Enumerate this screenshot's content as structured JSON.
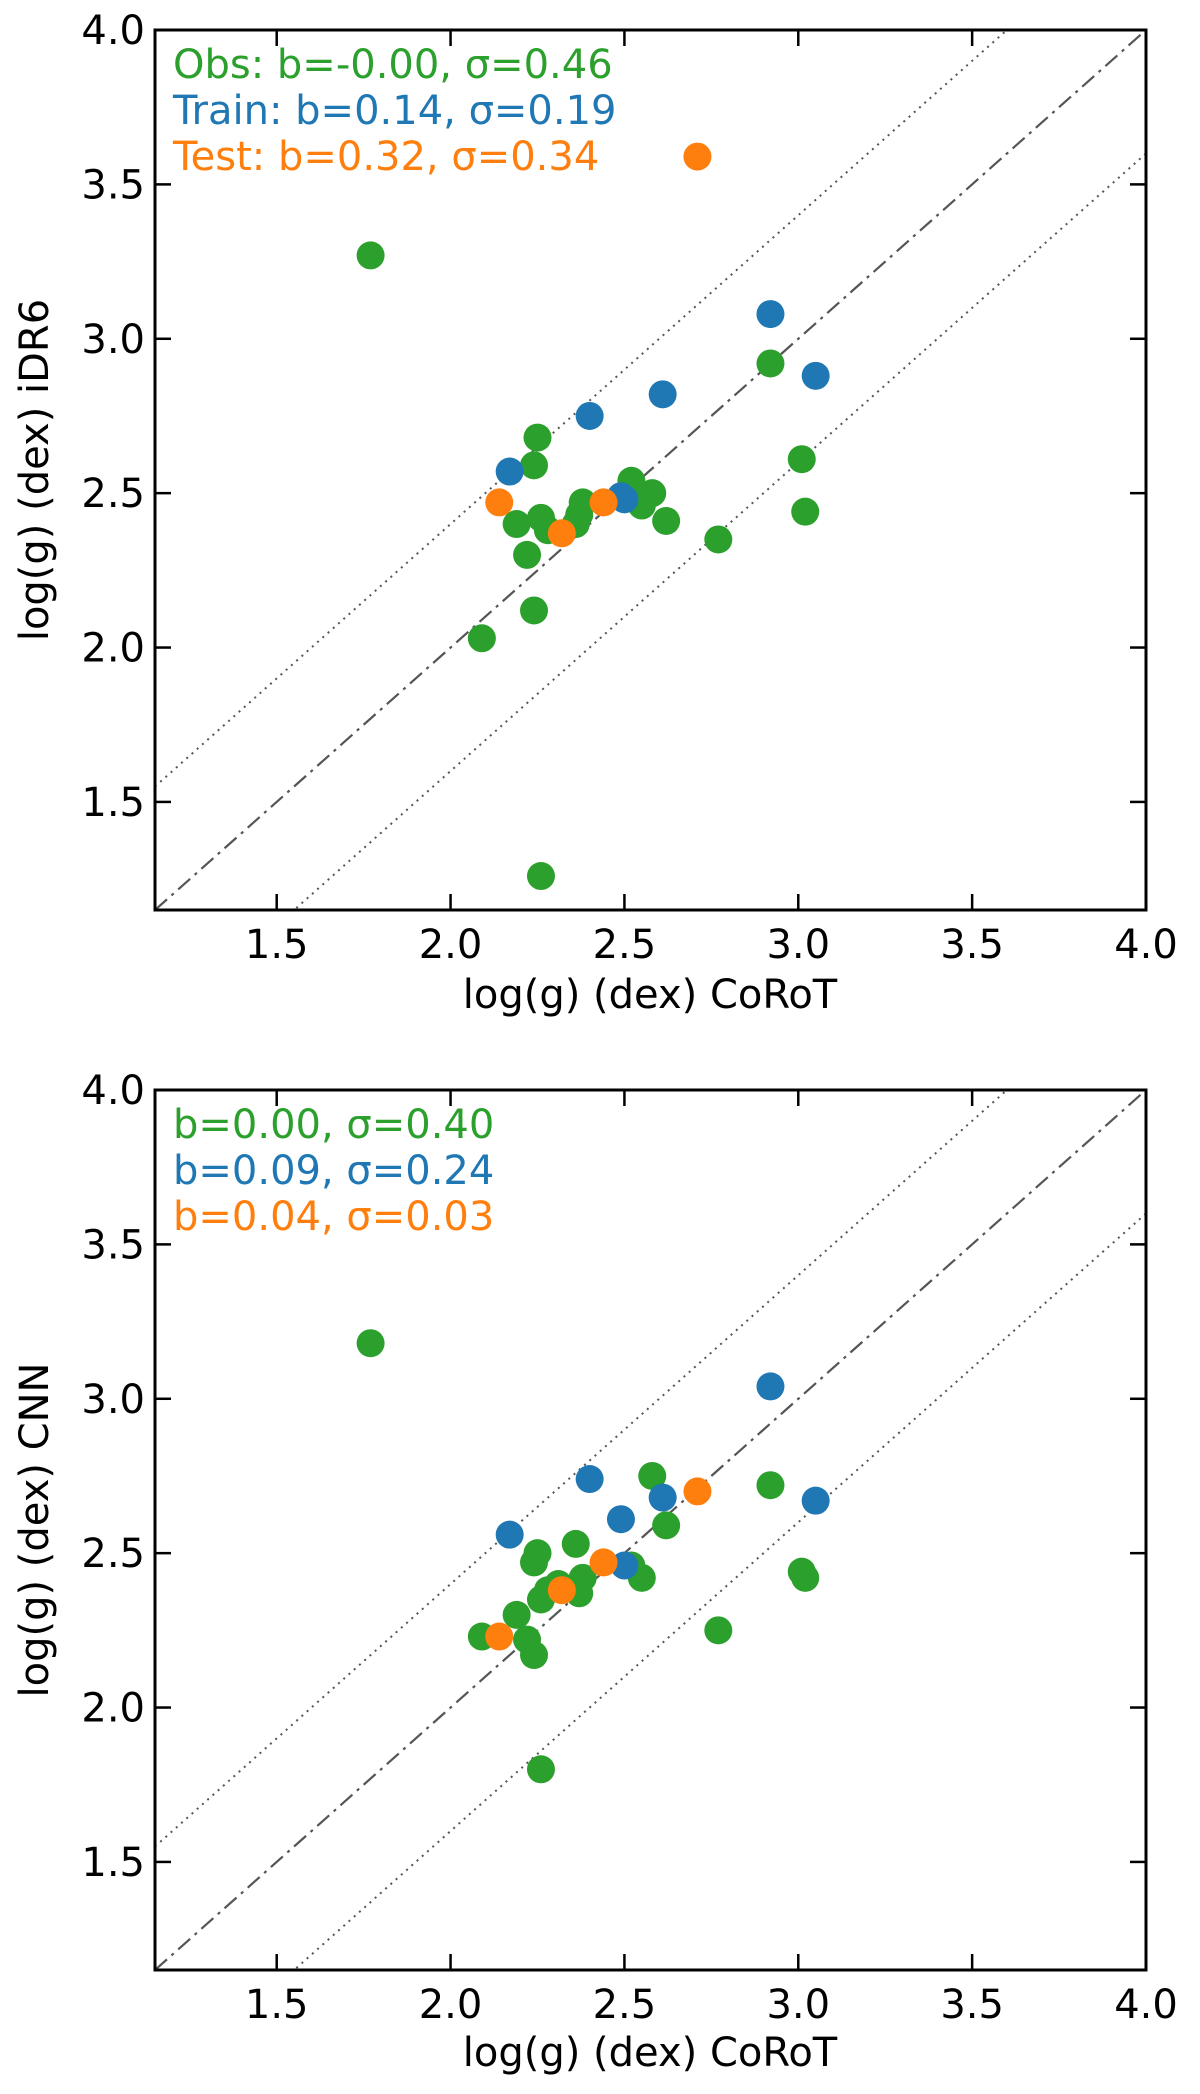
{
  "colors": {
    "obs": "#2ca02c",
    "train": "#1f77b4",
    "test": "#ff7f0e",
    "identity_line": "#555555",
    "offset_lines": "#555555"
  },
  "chart_data": [
    {
      "type": "scatter",
      "xlabel": "log(g) (dex) CoRoT",
      "ylabel": "log(g) (dex) iDR6",
      "xlim": [
        1.15,
        4.0
      ],
      "ylim": [
        1.15,
        4.0
      ],
      "xticks": [
        "1.5",
        "2.0",
        "2.5",
        "3.0",
        "3.5",
        "4.0"
      ],
      "yticks": [
        "1.5",
        "2.0",
        "2.5",
        "3.0",
        "3.5",
        "4.0"
      ],
      "grid": false,
      "reference_lines": {
        "identity": "dash-dot",
        "offset": 0.4,
        "offset_style": "dotted"
      },
      "annotations": [
        {
          "text": "Obs: b=-0.00, σ=0.46",
          "series": "obs"
        },
        {
          "text": "Train: b=0.14, σ=0.19",
          "series": "train"
        },
        {
          "text": "Test: b=0.32, σ=0.34",
          "series": "test"
        }
      ],
      "series": [
        {
          "key": "obs",
          "x": [
            1.77,
            2.09,
            2.19,
            2.22,
            2.24,
            2.24,
            2.25,
            2.26,
            2.28,
            2.36,
            2.37,
            2.38,
            2.52,
            2.55,
            2.58,
            2.62,
            2.77,
            2.92,
            3.01,
            3.02,
            2.26
          ],
          "y": [
            3.27,
            2.03,
            2.4,
            2.3,
            2.12,
            2.59,
            2.68,
            2.42,
            2.38,
            2.4,
            2.43,
            2.47,
            2.54,
            2.46,
            2.5,
            2.41,
            2.35,
            2.92,
            2.61,
            2.44,
            1.26
          ]
        },
        {
          "key": "train",
          "x": [
            2.17,
            2.4,
            2.49,
            2.5,
            2.61,
            2.92,
            3.05
          ],
          "y": [
            2.57,
            2.75,
            2.49,
            2.48,
            2.82,
            3.08,
            2.88
          ]
        },
        {
          "key": "test",
          "x": [
            2.14,
            2.32,
            2.44,
            2.71
          ],
          "y": [
            2.47,
            2.37,
            2.47,
            3.59
          ]
        }
      ]
    },
    {
      "type": "scatter",
      "xlabel": "log(g) (dex) CoRoT",
      "ylabel": "log(g) (dex) CNN",
      "xlim": [
        1.15,
        4.0
      ],
      "ylim": [
        1.15,
        4.0
      ],
      "xticks": [
        "1.5",
        "2.0",
        "2.5",
        "3.0",
        "3.5",
        "4.0"
      ],
      "yticks": [
        "1.5",
        "2.0",
        "2.5",
        "3.0",
        "3.5",
        "4.0"
      ],
      "grid": false,
      "reference_lines": {
        "identity": "dash-dot",
        "offset": 0.4,
        "offset_style": "dotted"
      },
      "annotations": [
        {
          "text": "b=0.00, σ=0.40",
          "series": "obs"
        },
        {
          "text": "b=0.09, σ=0.24",
          "series": "train"
        },
        {
          "text": "b=0.04, σ=0.03",
          "series": "test"
        }
      ],
      "series": [
        {
          "key": "obs",
          "x": [
            1.77,
            2.09,
            2.19,
            2.22,
            2.24,
            2.24,
            2.25,
            2.26,
            2.28,
            2.31,
            2.36,
            2.37,
            2.38,
            2.52,
            2.55,
            2.58,
            2.62,
            2.77,
            2.92,
            3.01,
            3.02,
            2.26
          ],
          "y": [
            3.18,
            2.23,
            2.3,
            2.22,
            2.17,
            2.47,
            2.5,
            2.35,
            2.38,
            2.4,
            2.53,
            2.37,
            2.42,
            2.46,
            2.42,
            2.75,
            2.59,
            2.25,
            2.72,
            2.44,
            2.42,
            1.8
          ]
        },
        {
          "key": "train",
          "x": [
            2.17,
            2.4,
            2.49,
            2.5,
            2.61,
            2.92,
            3.05
          ],
          "y": [
            2.56,
            2.74,
            2.61,
            2.46,
            2.68,
            3.04,
            2.67
          ]
        },
        {
          "key": "test",
          "x": [
            2.14,
            2.32,
            2.44,
            2.71
          ],
          "y": [
            2.23,
            2.38,
            2.47,
            2.7
          ]
        }
      ]
    }
  ]
}
